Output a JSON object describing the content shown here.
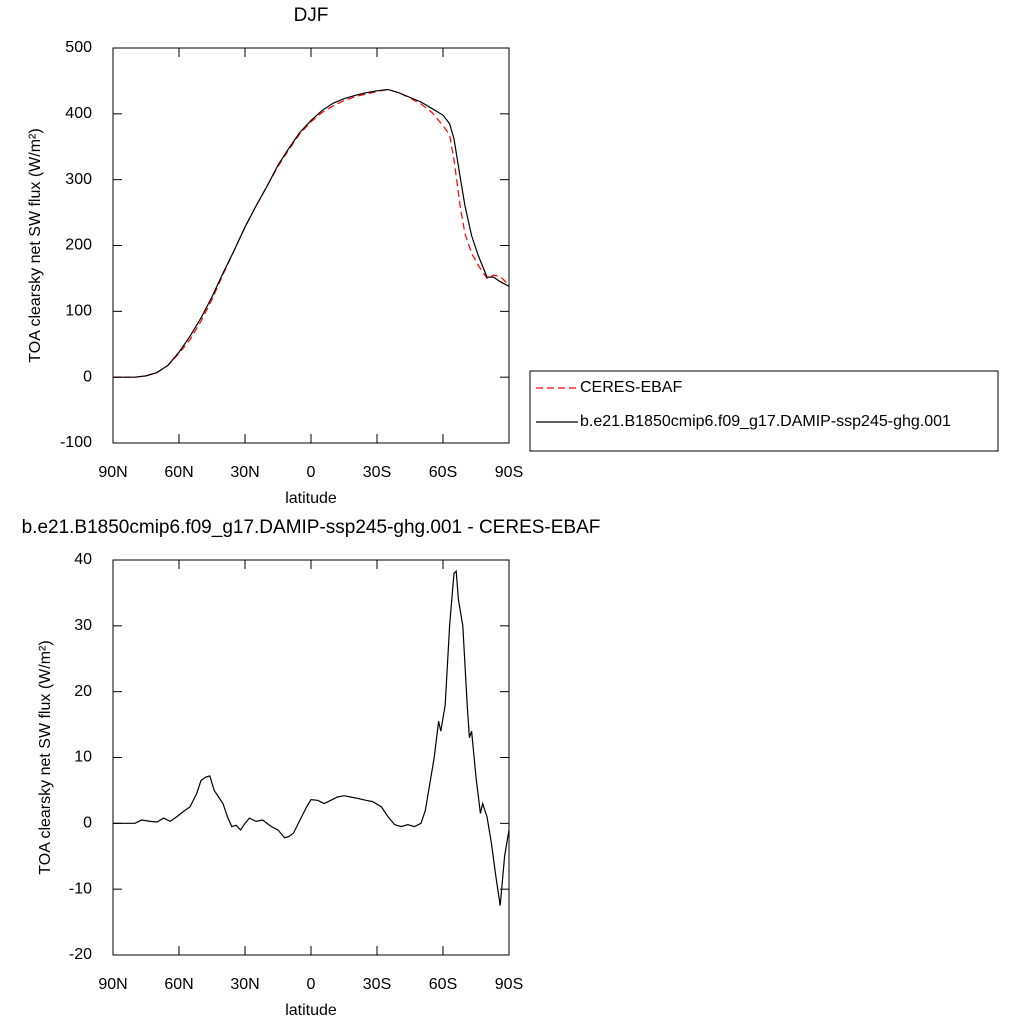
{
  "chart_data": [
    {
      "type": "line",
      "title": "DJF",
      "xlabel": "latitude",
      "ylabel": "TOA clearsky net SW flux (W/m²)",
      "xlim": [
        90,
        -90
      ],
      "ylim": [
        -100,
        500
      ],
      "xticks": [
        {
          "value": 90,
          "label": "90N"
        },
        {
          "value": 60,
          "label": "60N"
        },
        {
          "value": 30,
          "label": "30N"
        },
        0,
        {
          "value": -30,
          "label": "30S"
        },
        {
          "value": -60,
          "label": "60S"
        },
        {
          "value": -90,
          "label": "90S"
        }
      ],
      "yticks": [
        -100,
        0,
        100,
        200,
        300,
        400,
        500
      ],
      "legend": "right",
      "x": [
        90,
        85,
        80,
        75,
        70,
        65,
        60,
        55,
        50,
        45,
        40,
        35,
        30,
        25,
        20,
        15,
        10,
        5,
        0,
        -5,
        -10,
        -15,
        -20,
        -25,
        -30,
        -35,
        -40,
        -45,
        -50,
        -55,
        -60,
        -63,
        -65,
        -68,
        -70,
        -73,
        -76,
        -80,
        -83,
        -86,
        -90
      ],
      "series": [
        {
          "name": "CERES-EBAF",
          "color": "#ff0000",
          "linestyle": "dashed",
          "values": [
            0,
            0,
            0,
            2,
            7,
            18,
            36,
            57,
            85,
            118,
            156,
            192,
            228,
            260,
            290,
            320,
            346,
            370,
            388,
            402,
            412,
            420,
            426,
            430,
            434,
            437,
            432,
            424,
            415,
            402,
            382,
            368,
            330,
            255,
            218,
            188,
            170,
            150,
            155,
            153,
            140
          ]
        },
        {
          "name": "b.e21.B1850cmip6.f09_g17.DAMIP-ssp245-ghg.001",
          "color": "#000000",
          "linestyle": "solid",
          "values": [
            0,
            0,
            0,
            2,
            7,
            18,
            38,
            62,
            90,
            122,
            158,
            192,
            228,
            260,
            290,
            322,
            348,
            372,
            390,
            405,
            416,
            423,
            428,
            432,
            435,
            437,
            432,
            425,
            418,
            408,
            398,
            385,
            362,
            300,
            260,
            215,
            185,
            152,
            152,
            145,
            138
          ]
        }
      ]
    },
    {
      "type": "line",
      "title": "b.e21.B1850cmip6.f09_g17.DAMIP-ssp245-ghg.001 - CERES-EBAF",
      "xlabel": "latitude",
      "ylabel": "TOA clearsky net SW flux (W/m²)",
      "xlim": [
        90,
        -90
      ],
      "ylim": [
        -20,
        40
      ],
      "xticks": [
        {
          "value": 90,
          "label": "90N"
        },
        {
          "value": 60,
          "label": "60N"
        },
        {
          "value": 30,
          "label": "30N"
        },
        0,
        {
          "value": -30,
          "label": "30S"
        },
        {
          "value": -60,
          "label": "60S"
        },
        {
          "value": -90,
          "label": "90S"
        }
      ],
      "yticks": [
        -20,
        -10,
        0,
        10,
        20,
        30,
        40
      ],
      "x": [
        90,
        85,
        80,
        77,
        73,
        70,
        67,
        64,
        61,
        58,
        55,
        52,
        50,
        48,
        46,
        44,
        42,
        40,
        38,
        36,
        34,
        32,
        30,
        28,
        25,
        22,
        18,
        15,
        12,
        10,
        8,
        5,
        2,
        0,
        -3,
        -6,
        -9,
        -12,
        -15,
        -18,
        -21,
        -25,
        -28,
        -32,
        -35,
        -38,
        -41,
        -44,
        -47,
        -50,
        -52,
        -54,
        -56,
        -58,
        -59,
        -61,
        -63,
        -65,
        -66,
        -67,
        -69,
        -71,
        -72,
        -73,
        -75,
        -77,
        -78,
        -80,
        -82,
        -84,
        -86,
        -88,
        -90
      ],
      "series": [
        {
          "color": "#000000",
          "linestyle": "solid",
          "values": [
            0,
            0,
            0,
            0.5,
            0.3,
            0.2,
            0.8,
            0.3,
            1,
            1.8,
            2.5,
            4.5,
            6.5,
            7,
            7.2,
            5,
            4,
            3,
            1,
            -0.5,
            -0.3,
            -1,
            0,
            0.8,
            0.3,
            0.5,
            -0.5,
            -1,
            -2.2,
            -2,
            -1.5,
            0.5,
            2.5,
            3.6,
            3.5,
            3,
            3.5,
            4,
            4.2,
            4,
            3.8,
            3.5,
            3.3,
            2.5,
            1,
            -0.2,
            -0.5,
            -0.2,
            -0.5,
            0,
            2,
            6,
            10,
            15.5,
            14,
            18,
            30,
            38,
            38.3,
            34,
            30,
            18,
            13,
            14,
            7,
            1.5,
            3,
            1,
            -3,
            -8,
            -12.5,
            -5,
            -1
          ]
        }
      ]
    }
  ]
}
